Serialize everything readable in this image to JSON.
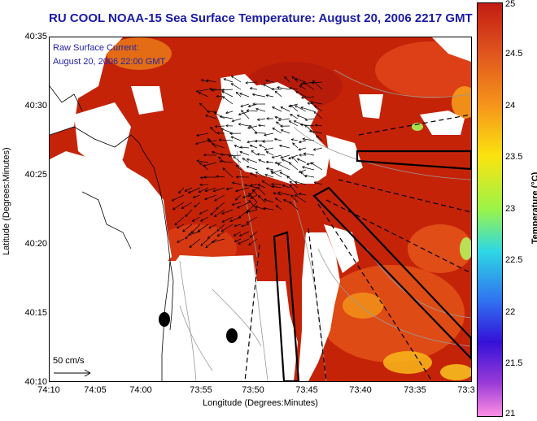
{
  "title": "RU COOL  NOAA-15  Sea Surface Temperature:  August 20, 2006 2217 GMT",
  "overlay": {
    "line1": "Raw Surface Current:",
    "line2": "August 20, 2006 22:00 GMT",
    "scale_label": "50 cm/s"
  },
  "axes": {
    "ylabel": "Latitude (Degrees:Minutes)",
    "xlabel": "Longitude (Degrees:Minutes)",
    "yticks": [
      "40:35",
      "40:30",
      "40:25",
      "40:20",
      "40:15",
      "40:10"
    ],
    "xticks": [
      "74:10",
      "74:05",
      "74:00",
      "73:55",
      "73:50",
      "73:45",
      "73:40",
      "73:35",
      "73:3"
    ]
  },
  "colorbar": {
    "label": "Temperature (°C)",
    "ticks": [
      "25",
      "24.5",
      "24",
      "23.5",
      "23",
      "22.5",
      "22",
      "21.5",
      "21"
    ],
    "range": [
      21,
      25
    ]
  },
  "colors": {
    "title_text": "#1a1aa8",
    "sst_dominant": "#c52308",
    "land_mask": "#ffffff"
  }
}
